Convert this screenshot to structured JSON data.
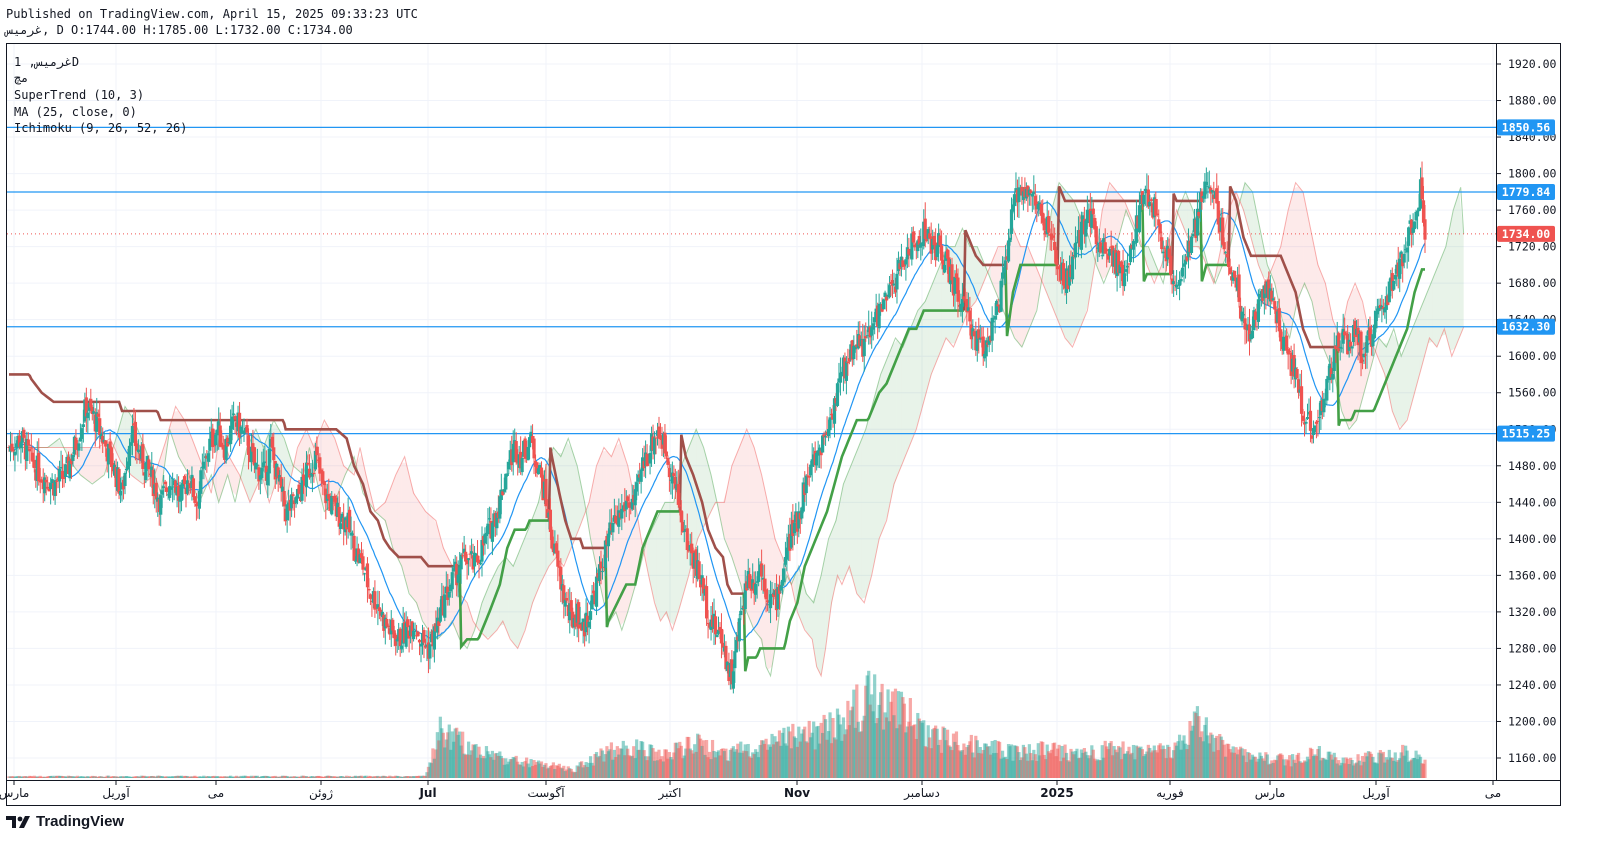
{
  "header": {
    "published": "Published on TradingView.com, April 15, 2025 09:33:23 UTC",
    "ohlc_line": "غرمیس, D O:1744.00 H:1785.00 L:1732.00 C:1734.00"
  },
  "legend": {
    "symbol": "غرمیس, 1D",
    "exchange": "مچ",
    "supertrend": "SuperTrend (10, 3)",
    "ma": "MA (25, close, 0)",
    "ichimoku": "Ichimoku (9, 26, 52, 26)"
  },
  "footer": {
    "brand": "TradingView"
  },
  "colors": {
    "up": "#26a69a",
    "down": "#ef5350",
    "ma": "#2196f3",
    "st_up": "#43a047",
    "st_down": "#a0504a",
    "hline": "#2196f3"
  },
  "chart_data": {
    "type": "candlestick",
    "title": "غرمیس, 1D",
    "ylim": [
      1140,
      1930
    ],
    "y_ticks": [
      1160,
      1200,
      1240,
      1280,
      1320,
      1360,
      1400,
      1440,
      1480,
      1520,
      1560,
      1600,
      1640,
      1680,
      1720,
      1760,
      1800,
      1840,
      1880,
      1920
    ],
    "y_tick_labels": [
      "1160.00",
      "1200.00",
      "1240.00",
      "1280.00",
      "1320.00",
      "1360.00",
      "1400.00",
      "1440.00",
      "1480.00",
      "1520.00",
      "1560.00",
      "1600.00",
      "1640.00",
      "1680.00",
      "1720.00",
      "1760.00",
      "1800.00",
      "1840.00",
      "1880.00",
      "1920.00"
    ],
    "x_labels": [
      "مارس",
      "آوریل",
      "می",
      "ژوئن",
      "Jul",
      "آگوست",
      "اکتبر",
      "Nov",
      "دسامبر",
      "2025",
      "فوریه",
      "مارس",
      "آوریل",
      "می"
    ],
    "x_label_bold": [
      false,
      false,
      false,
      false,
      true,
      false,
      false,
      true,
      false,
      true,
      false,
      false,
      false,
      false
    ],
    "horizontal_lines": [
      {
        "value": 1850.56,
        "label": "1850.56"
      },
      {
        "value": 1779.84,
        "label": "1779.84"
      },
      {
        "value": 1632.3,
        "label": "1632.30"
      },
      {
        "value": 1515.25,
        "label": "1515.25"
      }
    ],
    "last_price": {
      "value": 1734.0,
      "label": "1734.00"
    },
    "close_path": [
      [
        0,
        1500
      ],
      [
        8,
        1510
      ],
      [
        15,
        1485
      ],
      [
        22,
        1470
      ],
      [
        30,
        1460
      ],
      [
        38,
        1470
      ],
      [
        45,
        1505
      ],
      [
        52,
        1545
      ],
      [
        58,
        1530
      ],
      [
        63,
        1510
      ],
      [
        70,
        1480
      ],
      [
        76,
        1450
      ],
      [
        82,
        1520
      ],
      [
        88,
        1490
      ],
      [
        95,
        1470
      ],
      [
        102,
        1440
      ],
      [
        110,
        1470
      ],
      [
        115,
        1440
      ],
      [
        121,
        1470
      ],
      [
        126,
        1440
      ],
      [
        134,
        1500
      ],
      [
        140,
        1520
      ],
      [
        145,
        1500
      ],
      [
        152,
        1530
      ],
      [
        159,
        1510
      ],
      [
        165,
        1480
      ],
      [
        172,
        1470
      ],
      [
        176,
        1500
      ],
      [
        180,
        1470
      ],
      [
        186,
        1430
      ],
      [
        193,
        1440
      ],
      [
        200,
        1470
      ],
      [
        206,
        1490
      ],
      [
        212,
        1450
      ],
      [
        220,
        1430
      ],
      [
        227,
        1420
      ],
      [
        232,
        1390
      ],
      [
        238,
        1370
      ],
      [
        243,
        1340
      ],
      [
        248,
        1330
      ],
      [
        252,
        1310
      ],
      [
        256,
        1300
      ],
      [
        262,
        1290
      ],
      [
        268,
        1300
      ],
      [
        272,
        1310
      ],
      [
        277,
        1290
      ],
      [
        282,
        1280
      ],
      [
        287,
        1300
      ],
      [
        292,
        1330
      ],
      [
        297,
        1350
      ],
      [
        303,
        1370
      ],
      [
        308,
        1380
      ],
      [
        313,
        1370
      ],
      [
        318,
        1390
      ],
      [
        323,
        1410
      ],
      [
        330,
        1440
      ],
      [
        335,
        1480
      ],
      [
        340,
        1500
      ],
      [
        345,
        1490
      ],
      [
        350,
        1510
      ],
      [
        356,
        1480
      ],
      [
        361,
        1440
      ],
      [
        365,
        1400
      ],
      [
        370,
        1360
      ],
      [
        374,
        1330
      ],
      [
        378,
        1310
      ],
      [
        382,
        1320
      ],
      [
        386,
        1300
      ],
      [
        390,
        1320
      ],
      [
        397,
        1360
      ],
      [
        403,
        1400
      ],
      [
        409,
        1420
      ],
      [
        415,
        1440
      ],
      [
        421,
        1440
      ],
      [
        426,
        1480
      ],
      [
        431,
        1500
      ],
      [
        436,
        1520
      ],
      [
        441,
        1500
      ],
      [
        446,
        1470
      ],
      [
        450,
        1440
      ],
      [
        455,
        1400
      ],
      [
        460,
        1380
      ],
      [
        466,
        1350
      ],
      [
        470,
        1320
      ],
      [
        475,
        1300
      ],
      [
        480,
        1290
      ],
      [
        483,
        1260
      ],
      [
        486,
        1250
      ],
      [
        489,
        1280
      ],
      [
        493,
        1330
      ],
      [
        497,
        1360
      ],
      [
        500,
        1350
      ],
      [
        505,
        1370
      ],
      [
        510,
        1340
      ],
      [
        515,
        1330
      ],
      [
        520,
        1360
      ],
      [
        525,
        1400
      ],
      [
        530,
        1420
      ],
      [
        535,
        1460
      ],
      [
        540,
        1480
      ],
      [
        545,
        1500
      ],
      [
        550,
        1520
      ],
      [
        555,
        1550
      ],
      [
        560,
        1580
      ],
      [
        565,
        1600
      ],
      [
        570,
        1620
      ],
      [
        575,
        1610
      ],
      [
        580,
        1630
      ],
      [
        585,
        1650
      ],
      [
        590,
        1660
      ],
      [
        595,
        1680
      ],
      [
        600,
        1700
      ],
      [
        605,
        1720
      ],
      [
        610,
        1720
      ],
      [
        615,
        1740
      ],
      [
        620,
        1720
      ],
      [
        625,
        1720
      ],
      [
        630,
        1700
      ],
      [
        635,
        1680
      ],
      [
        640,
        1660
      ],
      [
        645,
        1640
      ],
      [
        650,
        1620
      ],
      [
        655,
        1610
      ],
      [
        660,
        1630
      ],
      [
        665,
        1650
      ],
      [
        670,
        1700
      ],
      [
        675,
        1760
      ],
      [
        680,
        1790
      ],
      [
        685,
        1780
      ],
      [
        690,
        1770
      ],
      [
        695,
        1750
      ],
      [
        700,
        1730
      ],
      [
        705,
        1700
      ],
      [
        710,
        1680
      ],
      [
        715,
        1700
      ],
      [
        720,
        1730
      ],
      [
        725,
        1760
      ],
      [
        730,
        1740
      ],
      [
        735,
        1720
      ],
      [
        740,
        1720
      ],
      [
        745,
        1700
      ],
      [
        750,
        1680
      ],
      [
        755,
        1720
      ],
      [
        760,
        1760
      ],
      [
        765,
        1780
      ],
      [
        770,
        1760
      ],
      [
        775,
        1730
      ],
      [
        780,
        1700
      ],
      [
        785,
        1680
      ],
      [
        790,
        1700
      ],
      [
        795,
        1720
      ],
      [
        800,
        1760
      ],
      [
        805,
        1790
      ],
      [
        810,
        1780
      ],
      [
        815,
        1740
      ],
      [
        820,
        1700
      ],
      [
        825,
        1680
      ],
      [
        830,
        1640
      ],
      [
        835,
        1620
      ],
      [
        840,
        1660
      ],
      [
        845,
        1680
      ],
      [
        850,
        1660
      ],
      [
        855,
        1620
      ],
      [
        860,
        1600
      ],
      [
        865,
        1580
      ],
      [
        870,
        1540
      ],
      [
        875,
        1520
      ],
      [
        880,
        1530
      ],
      [
        885,
        1560
      ],
      [
        890,
        1590
      ],
      [
        895,
        1620
      ],
      [
        900,
        1610
      ],
      [
        905,
        1630
      ],
      [
        910,
        1600
      ],
      [
        915,
        1620
      ],
      [
        920,
        1640
      ],
      [
        925,
        1660
      ],
      [
        930,
        1680
      ],
      [
        935,
        1700
      ],
      [
        940,
        1720
      ],
      [
        945,
        1760
      ],
      [
        950,
        1785
      ],
      [
        952,
        1734
      ]
    ],
    "volume_envelope": [
      [
        0,
        0.02
      ],
      [
        280,
        0.02
      ],
      [
        290,
        0.55
      ],
      [
        300,
        0.45
      ],
      [
        320,
        0.3
      ],
      [
        340,
        0.2
      ],
      [
        360,
        0.15
      ],
      [
        380,
        0.1
      ],
      [
        400,
        0.3
      ],
      [
        420,
        0.35
      ],
      [
        440,
        0.25
      ],
      [
        460,
        0.4
      ],
      [
        480,
        0.3
      ],
      [
        500,
        0.35
      ],
      [
        520,
        0.45
      ],
      [
        540,
        0.5
      ],
      [
        560,
        0.65
      ],
      [
        580,
        0.95
      ],
      [
        600,
        0.8
      ],
      [
        620,
        0.5
      ],
      [
        640,
        0.4
      ],
      [
        660,
        0.35
      ],
      [
        680,
        0.3
      ],
      [
        700,
        0.32
      ],
      [
        720,
        0.28
      ],
      [
        740,
        0.35
      ],
      [
        760,
        0.3
      ],
      [
        780,
        0.3
      ],
      [
        800,
        0.65
      ],
      [
        820,
        0.3
      ],
      [
        840,
        0.25
      ],
      [
        860,
        0.2
      ],
      [
        880,
        0.3
      ],
      [
        900,
        0.2
      ],
      [
        920,
        0.25
      ],
      [
        940,
        0.3
      ],
      [
        955,
        0.2
      ]
    ]
  }
}
